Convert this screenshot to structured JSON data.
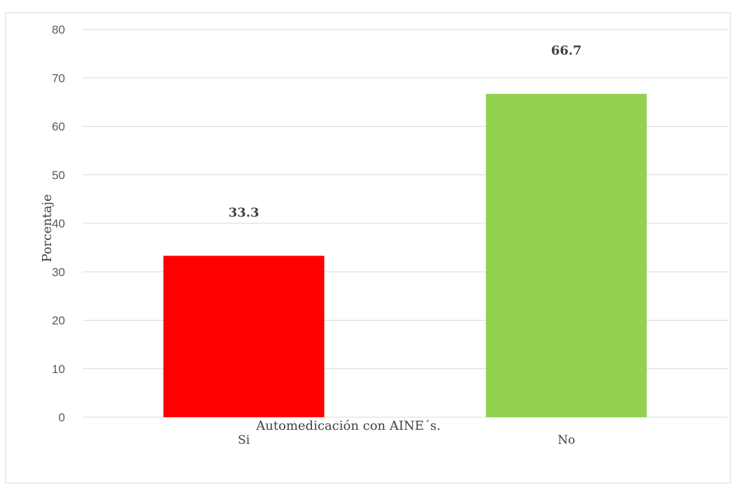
{
  "chart_data": {
    "type": "bar",
    "categories": [
      "Si",
      "No"
    ],
    "values": [
      33.3,
      66.7
    ],
    "data_labels": [
      "33.3",
      "66.7"
    ],
    "colors": [
      "#ff0000",
      "#92d050"
    ],
    "title": "",
    "xlabel": "Automedicación con AINE´s.",
    "ylabel": "Porcentaje",
    "ylim": [
      0,
      80
    ],
    "yticks": [
      0,
      10,
      20,
      30,
      40,
      50,
      60,
      70,
      80
    ],
    "ytick_labels": [
      "0",
      "10",
      "20",
      "30",
      "40",
      "50",
      "60",
      "70",
      "80"
    ],
    "grid": true,
    "legend": "none"
  }
}
